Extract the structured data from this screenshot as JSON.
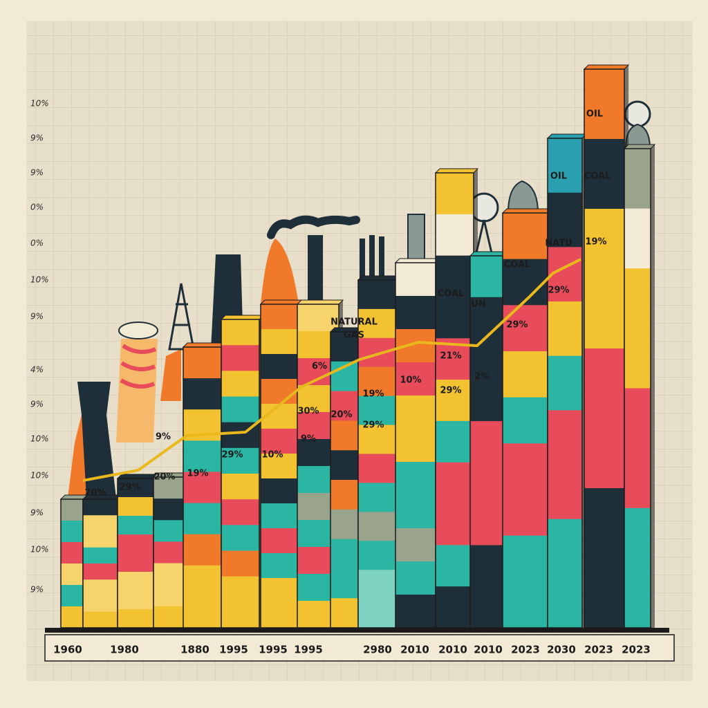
{
  "y_axis_labels": [
    "10%",
    "9%",
    "9%",
    "0%",
    "0%",
    "10%",
    "9%",
    "4%",
    "9%",
    "10%",
    "10%",
    "9%",
    "10%",
    "9%"
  ],
  "x_axis_labels": [
    "1960",
    "1980",
    "1880",
    "1995",
    "1995",
    "1995",
    "2980",
    "2010",
    "2010",
    "2010",
    "2023",
    "2030",
    "2023",
    "2023"
  ],
  "bar_labels": [
    "OIL",
    "OIL",
    "COAL",
    "19%",
    "NATU",
    "COAL",
    "UN",
    "COAL",
    "NATURAL",
    "GAS",
    "29%",
    "29%",
    "21%",
    "2%",
    "6%",
    "19%",
    "10%",
    "29%",
    "30%",
    "20%",
    "29%",
    "9%",
    "29%",
    "10%",
    "19%",
    "9%",
    "20%",
    "29%",
    "20%"
  ]
}
